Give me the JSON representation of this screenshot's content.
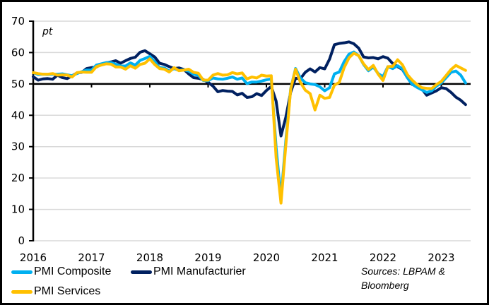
{
  "chart_data": {
    "type": "line",
    "title": "",
    "unit_label": "pt",
    "xlabel": "",
    "ylabel": "pt",
    "ylim": [
      0,
      70
    ],
    "yticks": [
      0,
      10,
      20,
      30,
      40,
      50,
      60,
      70
    ],
    "xticks": [
      "2016",
      "2017",
      "2018",
      "2019",
      "2020",
      "2021",
      "2022",
      "2023"
    ],
    "x_start": "2016-01",
    "x_end": "2023-06",
    "frequency": "monthly",
    "reference_line": 50,
    "grid": true,
    "legend_position": "bottom",
    "series": [
      {
        "name": "PMI Composite",
        "color": "#00B0F0",
        "values": [
          53.6,
          53.0,
          53.1,
          53.0,
          53.1,
          53.1,
          53.2,
          52.9,
          52.6,
          53.3,
          53.9,
          54.4,
          54.4,
          56.0,
          56.4,
          56.8,
          56.8,
          56.3,
          55.7,
          55.7,
          56.7,
          56.0,
          57.5,
          58.1,
          58.8,
          57.1,
          55.2,
          55.1,
          54.1,
          54.9,
          54.3,
          54.5,
          54.1,
          53.1,
          52.7,
          51.1,
          51.0,
          51.9,
          51.6,
          51.5,
          51.8,
          52.2,
          51.5,
          51.9,
          50.1,
          50.6,
          50.6,
          50.9,
          51.3,
          51.6,
          29.7,
          13.6,
          31.9,
          48.5,
          54.9,
          51.9,
          50.4,
          50.0,
          49.8,
          49.1,
          47.8,
          48.8,
          53.2,
          53.8,
          57.1,
          59.5,
          60.2,
          59.0,
          56.2,
          54.2,
          55.4,
          53.3,
          52.3,
          55.5,
          54.9,
          55.8,
          54.8,
          52.0,
          49.9,
          48.9,
          48.1,
          47.3,
          47.8,
          49.3,
          50.3,
          52.0,
          53.7,
          54.1,
          52.8,
          50.3
        ]
      },
      {
        "name": "PMI Manufacturier",
        "color": "#002060",
        "values": [
          52.3,
          51.2,
          51.6,
          51.7,
          51.5,
          52.8,
          52.0,
          51.7,
          52.6,
          53.5,
          53.7,
          54.9,
          55.2,
          55.4,
          56.2,
          56.7,
          57.0,
          57.4,
          56.6,
          57.4,
          58.1,
          58.5,
          60.1,
          60.6,
          59.6,
          58.6,
          56.6,
          56.2,
          55.5,
          54.9,
          55.1,
          54.6,
          53.2,
          52.0,
          51.8,
          51.4,
          50.5,
          49.3,
          47.5,
          47.9,
          47.7,
          47.6,
          46.5,
          47.0,
          45.7,
          45.9,
          46.9,
          46.3,
          47.9,
          49.2,
          44.5,
          33.4,
          39.4,
          47.4,
          51.8,
          51.7,
          53.7,
          54.8,
          53.8,
          55.2,
          54.8,
          57.9,
          62.5,
          62.9,
          63.1,
          63.4,
          62.8,
          61.4,
          58.6,
          58.3,
          58.4,
          58.0,
          58.7,
          58.2,
          56.5,
          55.5,
          54.6,
          52.1,
          49.8,
          49.6,
          48.4,
          46.4,
          47.1,
          47.8,
          48.8,
          48.5,
          47.3,
          45.8,
          44.8,
          43.4
        ]
      },
      {
        "name": "PMI Services",
        "color": "#FFC000",
        "values": [
          53.6,
          53.3,
          53.1,
          53.1,
          53.3,
          52.8,
          52.9,
          52.8,
          52.2,
          53.6,
          53.8,
          53.7,
          53.7,
          55.5,
          56.0,
          56.4,
          56.3,
          55.4,
          55.4,
          54.7,
          55.8,
          55.0,
          56.2,
          56.6,
          58.0,
          56.2,
          54.9,
          54.7,
          53.8,
          55.2,
          54.2,
          54.4,
          54.7,
          53.7,
          53.4,
          51.2,
          51.2,
          52.8,
          53.3,
          52.8,
          52.9,
          53.6,
          53.2,
          53.5,
          51.6,
          52.2,
          51.9,
          52.8,
          52.5,
          52.6,
          26.4,
          12.0,
          30.5,
          48.3,
          54.7,
          50.5,
          48.0,
          46.9,
          41.7,
          46.4,
          45.4,
          45.7,
          49.6,
          50.5,
          55.2,
          58.3,
          59.8,
          59.0,
          56.4,
          54.6,
          55.9,
          53.1,
          51.1,
          55.5,
          55.6,
          57.7,
          56.1,
          53.0,
          51.2,
          49.8,
          48.8,
          48.6,
          48.5,
          49.8,
          50.8,
          52.7,
          54.6,
          55.9,
          55.1,
          54.3
        ]
      }
    ]
  },
  "legend": {
    "items": [
      {
        "label": "PMI Composite"
      },
      {
        "label": "PMI Manufacturier"
      },
      {
        "label": "PMI Services"
      }
    ]
  },
  "source": {
    "line1": "Sources: LBPAM &",
    "line2": "Bloomberg"
  }
}
